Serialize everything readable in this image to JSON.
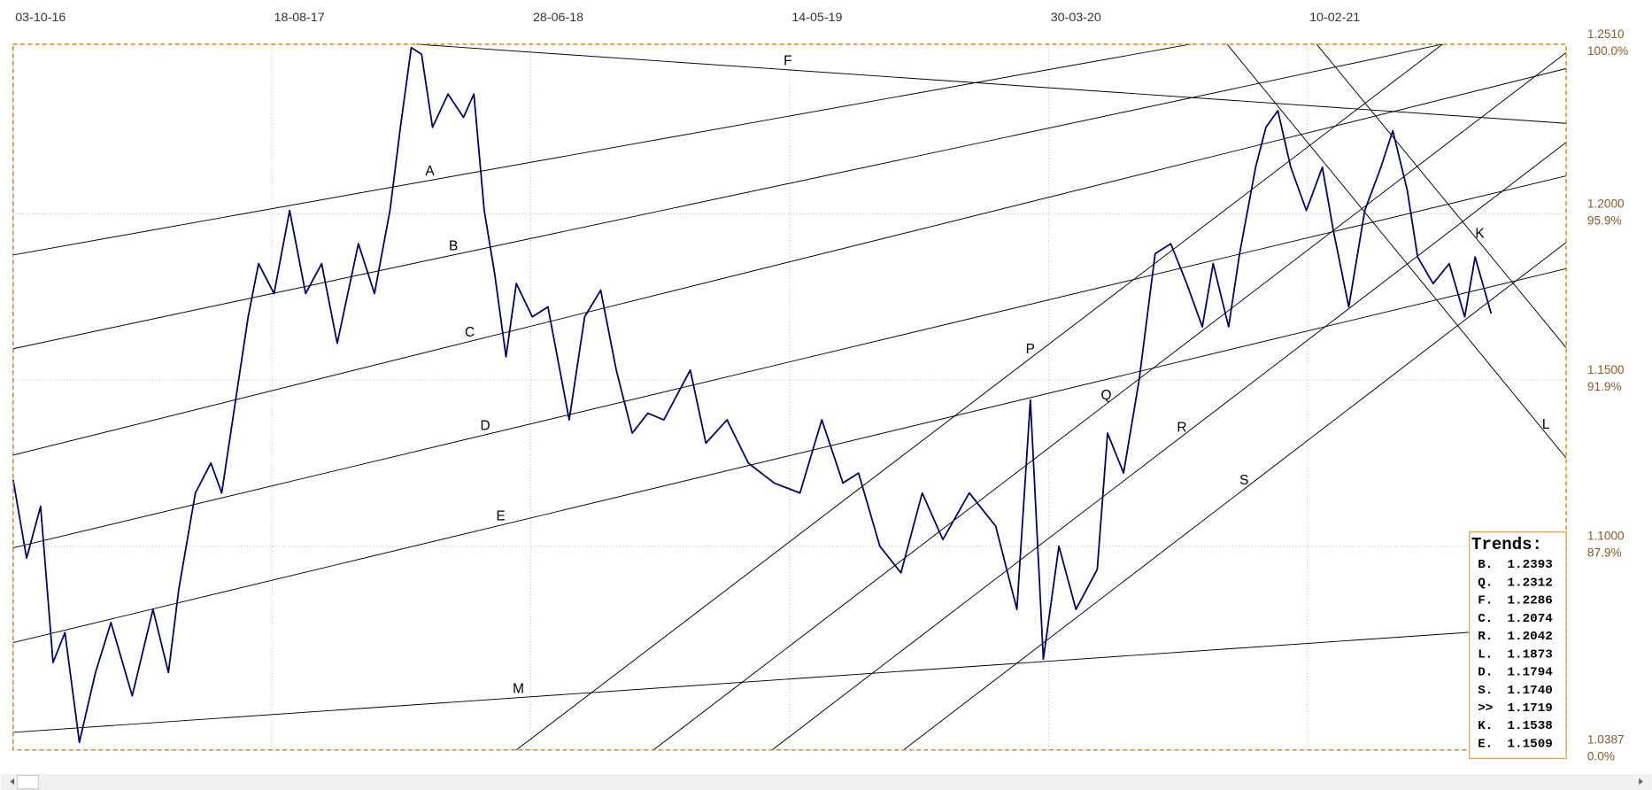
{
  "chart_data": {
    "type": "line",
    "xlim": [
      0,
      300
    ],
    "xticks": [
      {
        "value": 0,
        "label": "03-10-16"
      },
      {
        "value": 50,
        "label": "18-08-17"
      },
      {
        "value": 100,
        "label": "28-06-18"
      },
      {
        "value": 150,
        "label": "14-05-19"
      },
      {
        "value": 200,
        "label": "30-03-20"
      },
      {
        "value": 250,
        "label": "10-02-21"
      }
    ],
    "ylim": [
      1.0387,
      1.251
    ],
    "yticks": [
      {
        "value": 1.251,
        "label": "1.2510"
      },
      {
        "value": 1.2,
        "label": "1.2000"
      },
      {
        "value": 1.15,
        "label": "1.1500"
      },
      {
        "value": 1.1,
        "label": "1.1000"
      },
      {
        "value": 1.0387,
        "label": "1.0387"
      }
    ],
    "ytick_percent_labels": [
      "100.0%",
      "95.9%",
      "91.9%",
      "87.9%",
      "0.0%"
    ],
    "grid": true,
    "x": [
      0,
      2.6,
      5.3,
      7.7,
      10,
      12.8,
      15.9,
      18.9,
      23,
      27,
      30,
      32,
      35.2,
      38.2,
      40.3,
      42.7,
      45.4,
      47.4,
      50.4,
      53.4,
      56.5,
      59.6,
      62.6,
      66.7,
      69.8,
      72.8,
      74.8,
      76.9,
      78.9,
      81,
      84,
      87,
      89,
      91,
      93,
      95.2,
      97.2,
      100.3,
      103.3,
      107.4,
      110.4,
      113.5,
      116.5,
      119.6,
      122.6,
      125.7,
      130.8,
      133.8,
      137.9,
      142,
      147,
      152,
      156.2,
      160.3,
      163.3,
      167.4,
      171.5,
      175.6,
      179.6,
      184.7,
      189.8,
      193.9,
      196.5,
      199,
      202,
      205.3,
      209.4,
      211.4,
      214.5,
      217.5,
      220.6,
      223.6,
      226.7,
      229.7,
      231.8,
      234.8,
      236.9,
      240,
      242,
      244.3,
      246.8,
      249.8,
      252.9,
      255,
      258,
      261.1,
      264.2,
      266.5,
      269.3,
      271.3,
      274.3,
      277.4,
      280.4,
      282.4,
      285.5
    ],
    "series": [
      {
        "color": "#000066",
        "values": [
          1.12,
          1.0964,
          1.112,
          1.065,
          1.074,
          1.041,
          1.062,
          1.077,
          1.055,
          1.081,
          1.062,
          1.087,
          1.116,
          1.125,
          1.116,
          1.141,
          1.169,
          1.185,
          1.176,
          1.201,
          1.176,
          1.185,
          1.161,
          1.191,
          1.176,
          1.201,
          1.226,
          1.25,
          1.248,
          1.226,
          1.236,
          1.229,
          1.236,
          1.201,
          1.182,
          1.157,
          1.179,
          1.169,
          1.172,
          1.138,
          1.169,
          1.177,
          1.153,
          1.134,
          1.14,
          1.138,
          1.153,
          1.131,
          1.138,
          1.125,
          1.119,
          1.116,
          1.138,
          1.119,
          1.122,
          1.1,
          1.092,
          1.116,
          1.102,
          1.116,
          1.106,
          1.081,
          1.144,
          1.066,
          1.1,
          1.081,
          1.093,
          1.134,
          1.122,
          1.15,
          1.188,
          1.191,
          1.179,
          1.166,
          1.185,
          1.166,
          1.188,
          1.214,
          1.226,
          1.231,
          1.214,
          1.201,
          1.214,
          1.195,
          1.172,
          1.201,
          1.214,
          1.225,
          1.207,
          1.187,
          1.179,
          1.185,
          1.169,
          1.187,
          1.17
        ]
      }
    ],
    "trend_lines": [
      {
        "label": "A",
        "x": [
          0,
          227.4
        ],
        "y": [
          1.1876,
          1.251
        ]
      },
      {
        "label": "B",
        "x": [
          0,
          276.1
        ],
        "y": [
          1.1594,
          1.251
        ]
      },
      {
        "label": "C",
        "x": [
          0,
          300
        ],
        "y": [
          1.1274,
          1.2437
        ]
      },
      {
        "label": "D",
        "x": [
          0,
          300
        ],
        "y": [
          1.0995,
          1.2114
        ]
      },
      {
        "label": "E",
        "x": [
          0,
          300
        ],
        "y": [
          1.071,
          1.1835
        ]
      },
      {
        "label": "M",
        "x": [
          0,
          281.3
        ],
        "y": [
          1.044,
          1.0741
        ]
      },
      {
        "label": "F",
        "x": [
          77.9,
          300
        ],
        "y": [
          1.251,
          1.2272
        ]
      },
      {
        "label": "P",
        "x": [
          97.2,
          276.1
        ],
        "y": [
          1.0387,
          1.251
        ]
      },
      {
        "label": "Q",
        "x": [
          123.7,
          300
        ],
        "y": [
          1.0387,
          1.2485
        ]
      },
      {
        "label": "R",
        "x": [
          146.6,
          300
        ],
        "y": [
          1.0387,
          1.2215
        ]
      },
      {
        "label": "S",
        "x": [
          172,
          300
        ],
        "y": [
          1.0387,
          1.1914
        ]
      },
      {
        "label": "L",
        "x": [
          234.5,
          300
        ],
        "y": [
          1.251,
          1.1265
        ]
      },
      {
        "label": "K",
        "x": [
          251.8,
          300
        ],
        "y": [
          1.251,
          1.1597
        ]
      }
    ]
  },
  "trends_box": {
    "title": "Trends:",
    "rows": [
      {
        "key": "B.",
        "value": "1.2393"
      },
      {
        "key": "Q.",
        "value": "1.2312"
      },
      {
        "key": "F.",
        "value": "1.2286"
      },
      {
        "key": "C.",
        "value": "1.2074"
      },
      {
        "key": "R.",
        "value": "1.2042"
      },
      {
        "key": "L.",
        "value": "1.1873"
      },
      {
        "key": "D.",
        "value": "1.1794"
      },
      {
        "key": "S.",
        "value": "1.1740"
      },
      {
        "key": ">>",
        "value": "1.1719"
      },
      {
        "key": "K.",
        "value": "1.1538"
      },
      {
        "key": "E.",
        "value": "1.1509"
      }
    ]
  }
}
